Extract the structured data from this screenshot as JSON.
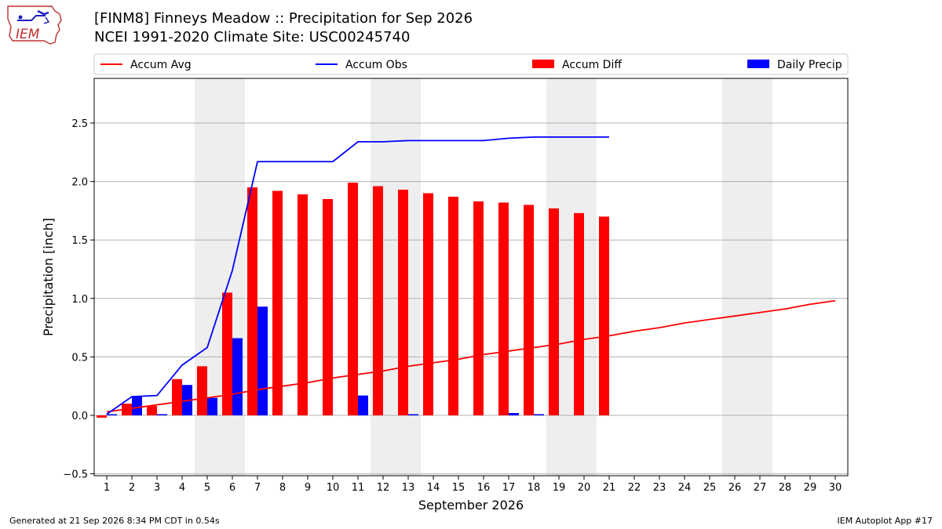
{
  "header": {
    "title_line1": "[FINM8] Finneys Meadow :: Precipitation for Sep 2026",
    "title_line2": "NCEI 1991-2020 Climate Site: USC00245740",
    "logo_text": "IEM"
  },
  "footer": {
    "generated": "Generated at 21 Sep 2026 8:34 PM CDT in 0.54s",
    "app": "IEM Autoplot App #17"
  },
  "colors": {
    "accum_avg": "#ff0000",
    "accum_obs": "#0000ff",
    "accum_diff": "#ff0000",
    "daily_precip": "#0000ff",
    "weekend_shade": "#eeeeee",
    "grid": "#b0b0b0"
  },
  "chart_data": {
    "type": "bar",
    "xlabel": "September 2026",
    "ylabel": "Precipitation [inch]",
    "xlim": [
      0.5,
      30.5
    ],
    "ylim": [
      -0.5,
      2.5
    ],
    "y_ticks": [
      "−0.5",
      "0.0",
      "0.5",
      "1.0",
      "1.5",
      "2.0",
      "2.5"
    ],
    "y_tick_values": [
      -0.5,
      0.0,
      0.5,
      1.0,
      1.5,
      2.0,
      2.5
    ],
    "days": [
      1,
      2,
      3,
      4,
      5,
      6,
      7,
      8,
      9,
      10,
      11,
      12,
      13,
      14,
      15,
      16,
      17,
      18,
      19,
      20,
      21,
      22,
      23,
      24,
      25,
      26,
      27,
      28,
      29,
      30
    ],
    "x_tick_labels": [
      "1",
      "2",
      "3",
      "4",
      "5",
      "6",
      "7",
      "8",
      "9",
      "10",
      "11",
      "12",
      "13",
      "14",
      "15",
      "16",
      "17",
      "18",
      "19",
      "20",
      "21",
      "22",
      "23",
      "24",
      "25",
      "26",
      "27",
      "28",
      "29",
      "30"
    ],
    "weekend_spans": [
      [
        4.5,
        6.5
      ],
      [
        11.5,
        13.5
      ],
      [
        18.5,
        20.5
      ],
      [
        25.5,
        27.5
      ]
    ],
    "legend": {
      "placement": "top, above plot",
      "entries": [
        {
          "label": "Accum Avg",
          "kind": "line",
          "color_key": "accum_avg"
        },
        {
          "label": "Accum Obs",
          "kind": "line",
          "color_key": "accum_obs"
        },
        {
          "label": "Accum Diff",
          "kind": "bar",
          "color_key": "accum_diff"
        },
        {
          "label": "Daily Precip",
          "kind": "bar",
          "color_key": "daily_precip"
        }
      ]
    },
    "series": [
      {
        "name": "Accum Avg",
        "type": "line",
        "x": [
          1,
          2,
          3,
          4,
          5,
          6,
          7,
          8,
          9,
          10,
          11,
          12,
          13,
          14,
          15,
          16,
          17,
          18,
          19,
          20,
          21,
          22,
          23,
          24,
          25,
          26,
          27,
          28,
          29,
          30
        ],
        "values": [
          0.03,
          0.06,
          0.09,
          0.12,
          0.15,
          0.18,
          0.22,
          0.25,
          0.28,
          0.32,
          0.35,
          0.38,
          0.42,
          0.45,
          0.48,
          0.52,
          0.55,
          0.58,
          0.61,
          0.65,
          0.68,
          0.72,
          0.75,
          0.79,
          0.82,
          0.85,
          0.88,
          0.91,
          0.95,
          0.98
        ]
      },
      {
        "name": "Accum Obs",
        "type": "line",
        "x": [
          1,
          2,
          3,
          4,
          5,
          6,
          7,
          8,
          9,
          10,
          11,
          12,
          13,
          14,
          15,
          16,
          17,
          18,
          19,
          20,
          21
        ],
        "values": [
          0.01,
          0.16,
          0.17,
          0.43,
          0.58,
          1.24,
          2.17,
          2.17,
          2.17,
          2.17,
          2.34,
          2.34,
          2.35,
          2.35,
          2.35,
          2.35,
          2.37,
          2.38,
          2.38,
          2.38,
          2.38
        ]
      },
      {
        "name": "Accum Diff",
        "type": "bar",
        "x": [
          1,
          2,
          3,
          4,
          5,
          6,
          7,
          8,
          9,
          10,
          11,
          12,
          13,
          14,
          15,
          16,
          17,
          18,
          19,
          20,
          21
        ],
        "values": [
          -0.02,
          0.1,
          0.08,
          0.31,
          0.42,
          1.05,
          1.95,
          1.92,
          1.89,
          1.85,
          1.99,
          1.96,
          1.93,
          1.9,
          1.87,
          1.83,
          1.82,
          1.8,
          1.77,
          1.73,
          1.7
        ]
      },
      {
        "name": "Daily Precip",
        "type": "bar",
        "x": [
          1,
          2,
          3,
          4,
          5,
          6,
          7,
          8,
          9,
          10,
          11,
          12,
          13,
          14,
          15,
          16,
          17,
          18,
          19,
          20,
          21
        ],
        "values": [
          0.01,
          0.16,
          0.01,
          0.26,
          0.15,
          0.66,
          0.93,
          0.0,
          0.0,
          0.0,
          0.17,
          0.0,
          0.01,
          0.0,
          0.0,
          0.0,
          0.02,
          0.01,
          0.0,
          0.0,
          0.0
        ]
      }
    ]
  }
}
